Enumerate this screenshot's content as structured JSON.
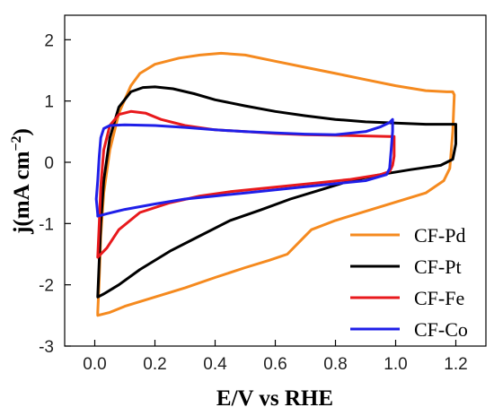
{
  "chart_data": {
    "type": "line",
    "title": "",
    "xlabel": "E/V vs RHE",
    "ylabel_main": "j(mA cm",
    "ylabel_sup": "−2",
    "ylabel_close": ")",
    "xlim": [
      -0.1,
      1.3
    ],
    "ylim": [
      -3,
      2.4
    ],
    "xticks": [
      0.0,
      0.2,
      0.4,
      0.6,
      0.8,
      1.0,
      1.2
    ],
    "xtick_labels": [
      "0.0",
      "0.2",
      "0.4",
      "0.6",
      "0.8",
      "1.0",
      "1.2"
    ],
    "yticks": [
      -3,
      -2,
      -1,
      0,
      1,
      2
    ],
    "ytick_labels": [
      "-3",
      "-2",
      "-1",
      "0",
      "1",
      "2"
    ],
    "grid": false,
    "legend_position": "bottom-right",
    "series": [
      {
        "name": "CF-Pd",
        "color": "#F58A1F",
        "points": [
          [
            0.01,
            -2.45
          ],
          [
            0.015,
            -1.9
          ],
          [
            0.02,
            -1.2
          ],
          [
            0.03,
            -0.5
          ],
          [
            0.05,
            0.2
          ],
          [
            0.08,
            0.8
          ],
          [
            0.12,
            1.25
          ],
          [
            0.15,
            1.45
          ],
          [
            0.2,
            1.6
          ],
          [
            0.28,
            1.7
          ],
          [
            0.35,
            1.75
          ],
          [
            0.42,
            1.78
          ],
          [
            0.5,
            1.75
          ],
          [
            0.6,
            1.65
          ],
          [
            0.7,
            1.55
          ],
          [
            0.8,
            1.45
          ],
          [
            0.9,
            1.35
          ],
          [
            1.0,
            1.25
          ],
          [
            1.1,
            1.17
          ],
          [
            1.17,
            1.15
          ],
          [
            1.19,
            1.15
          ],
          [
            1.195,
            1.1
          ],
          [
            1.19,
            0.5
          ],
          [
            1.18,
            -0.1
          ],
          [
            1.16,
            -0.3
          ],
          [
            1.1,
            -0.5
          ],
          [
            1.0,
            -0.65
          ],
          [
            0.9,
            -0.8
          ],
          [
            0.8,
            -0.95
          ],
          [
            0.72,
            -1.1
          ],
          [
            0.68,
            -1.3
          ],
          [
            0.64,
            -1.5
          ],
          [
            0.58,
            -1.6
          ],
          [
            0.5,
            -1.72
          ],
          [
            0.4,
            -1.88
          ],
          [
            0.3,
            -2.05
          ],
          [
            0.2,
            -2.2
          ],
          [
            0.1,
            -2.35
          ],
          [
            0.05,
            -2.45
          ],
          [
            0.01,
            -2.5
          ]
        ]
      },
      {
        "name": "CF-Pt",
        "color": "#000000",
        "points": [
          [
            0.01,
            -2.2
          ],
          [
            0.015,
            -1.6
          ],
          [
            0.02,
            -1.0
          ],
          [
            0.03,
            -0.3
          ],
          [
            0.05,
            0.4
          ],
          [
            0.08,
            0.9
          ],
          [
            0.12,
            1.15
          ],
          [
            0.16,
            1.22
          ],
          [
            0.2,
            1.23
          ],
          [
            0.26,
            1.2
          ],
          [
            0.33,
            1.12
          ],
          [
            0.4,
            1.02
          ],
          [
            0.5,
            0.92
          ],
          [
            0.6,
            0.83
          ],
          [
            0.7,
            0.76
          ],
          [
            0.8,
            0.7
          ],
          [
            0.9,
            0.66
          ],
          [
            1.0,
            0.64
          ],
          [
            1.1,
            0.62
          ],
          [
            1.19,
            0.62
          ],
          [
            1.2,
            0.62
          ],
          [
            1.2,
            0.3
          ],
          [
            1.19,
            0.05
          ],
          [
            1.15,
            -0.05
          ],
          [
            1.05,
            -0.12
          ],
          [
            0.95,
            -0.2
          ],
          [
            0.85,
            -0.3
          ],
          [
            0.75,
            -0.45
          ],
          [
            0.65,
            -0.6
          ],
          [
            0.55,
            -0.78
          ],
          [
            0.45,
            -0.95
          ],
          [
            0.35,
            -1.2
          ],
          [
            0.25,
            -1.45
          ],
          [
            0.15,
            -1.75
          ],
          [
            0.08,
            -2.0
          ],
          [
            0.03,
            -2.15
          ],
          [
            0.01,
            -2.2
          ]
        ]
      },
      {
        "name": "CF-Fe",
        "color": "#E8191C",
        "points": [
          [
            0.01,
            -1.55
          ],
          [
            0.015,
            -1.0
          ],
          [
            0.02,
            -0.4
          ],
          [
            0.03,
            0.2
          ],
          [
            0.05,
            0.6
          ],
          [
            0.08,
            0.78
          ],
          [
            0.12,
            0.83
          ],
          [
            0.17,
            0.8
          ],
          [
            0.22,
            0.7
          ],
          [
            0.3,
            0.6
          ],
          [
            0.4,
            0.53
          ],
          [
            0.5,
            0.5
          ],
          [
            0.6,
            0.47
          ],
          [
            0.7,
            0.45
          ],
          [
            0.8,
            0.44
          ],
          [
            0.9,
            0.43
          ],
          [
            0.98,
            0.42
          ],
          [
            0.995,
            0.42
          ],
          [
            0.995,
            0.1
          ],
          [
            0.99,
            -0.05
          ],
          [
            0.98,
            -0.15
          ],
          [
            0.95,
            -0.2
          ],
          [
            0.85,
            -0.28
          ],
          [
            0.75,
            -0.33
          ],
          [
            0.65,
            -0.38
          ],
          [
            0.55,
            -0.43
          ],
          [
            0.45,
            -0.48
          ],
          [
            0.35,
            -0.55
          ],
          [
            0.25,
            -0.66
          ],
          [
            0.15,
            -0.82
          ],
          [
            0.08,
            -1.1
          ],
          [
            0.04,
            -1.4
          ],
          [
            0.01,
            -1.55
          ]
        ]
      },
      {
        "name": "CF-Co",
        "color": "#1F1FE8",
        "points": [
          [
            0.01,
            -0.85
          ],
          [
            0.005,
            -0.6
          ],
          [
            0.01,
            -0.3
          ],
          [
            0.015,
            0.1
          ],
          [
            0.02,
            0.4
          ],
          [
            0.03,
            0.55
          ],
          [
            0.05,
            0.6
          ],
          [
            0.1,
            0.61
          ],
          [
            0.2,
            0.6
          ],
          [
            0.3,
            0.57
          ],
          [
            0.4,
            0.53
          ],
          [
            0.5,
            0.5
          ],
          [
            0.6,
            0.48
          ],
          [
            0.7,
            0.46
          ],
          [
            0.8,
            0.45
          ],
          [
            0.9,
            0.5
          ],
          [
            0.95,
            0.58
          ],
          [
            0.98,
            0.65
          ],
          [
            0.99,
            0.7
          ],
          [
            0.99,
            0.5
          ],
          [
            0.985,
            0.2
          ],
          [
            0.98,
            -0.1
          ],
          [
            0.97,
            -0.2
          ],
          [
            0.9,
            -0.3
          ],
          [
            0.8,
            -0.35
          ],
          [
            0.7,
            -0.4
          ],
          [
            0.6,
            -0.45
          ],
          [
            0.5,
            -0.5
          ],
          [
            0.4,
            -0.55
          ],
          [
            0.3,
            -0.6
          ],
          [
            0.2,
            -0.68
          ],
          [
            0.1,
            -0.77
          ],
          [
            0.04,
            -0.84
          ],
          [
            0.01,
            -0.88
          ]
        ]
      }
    ]
  }
}
